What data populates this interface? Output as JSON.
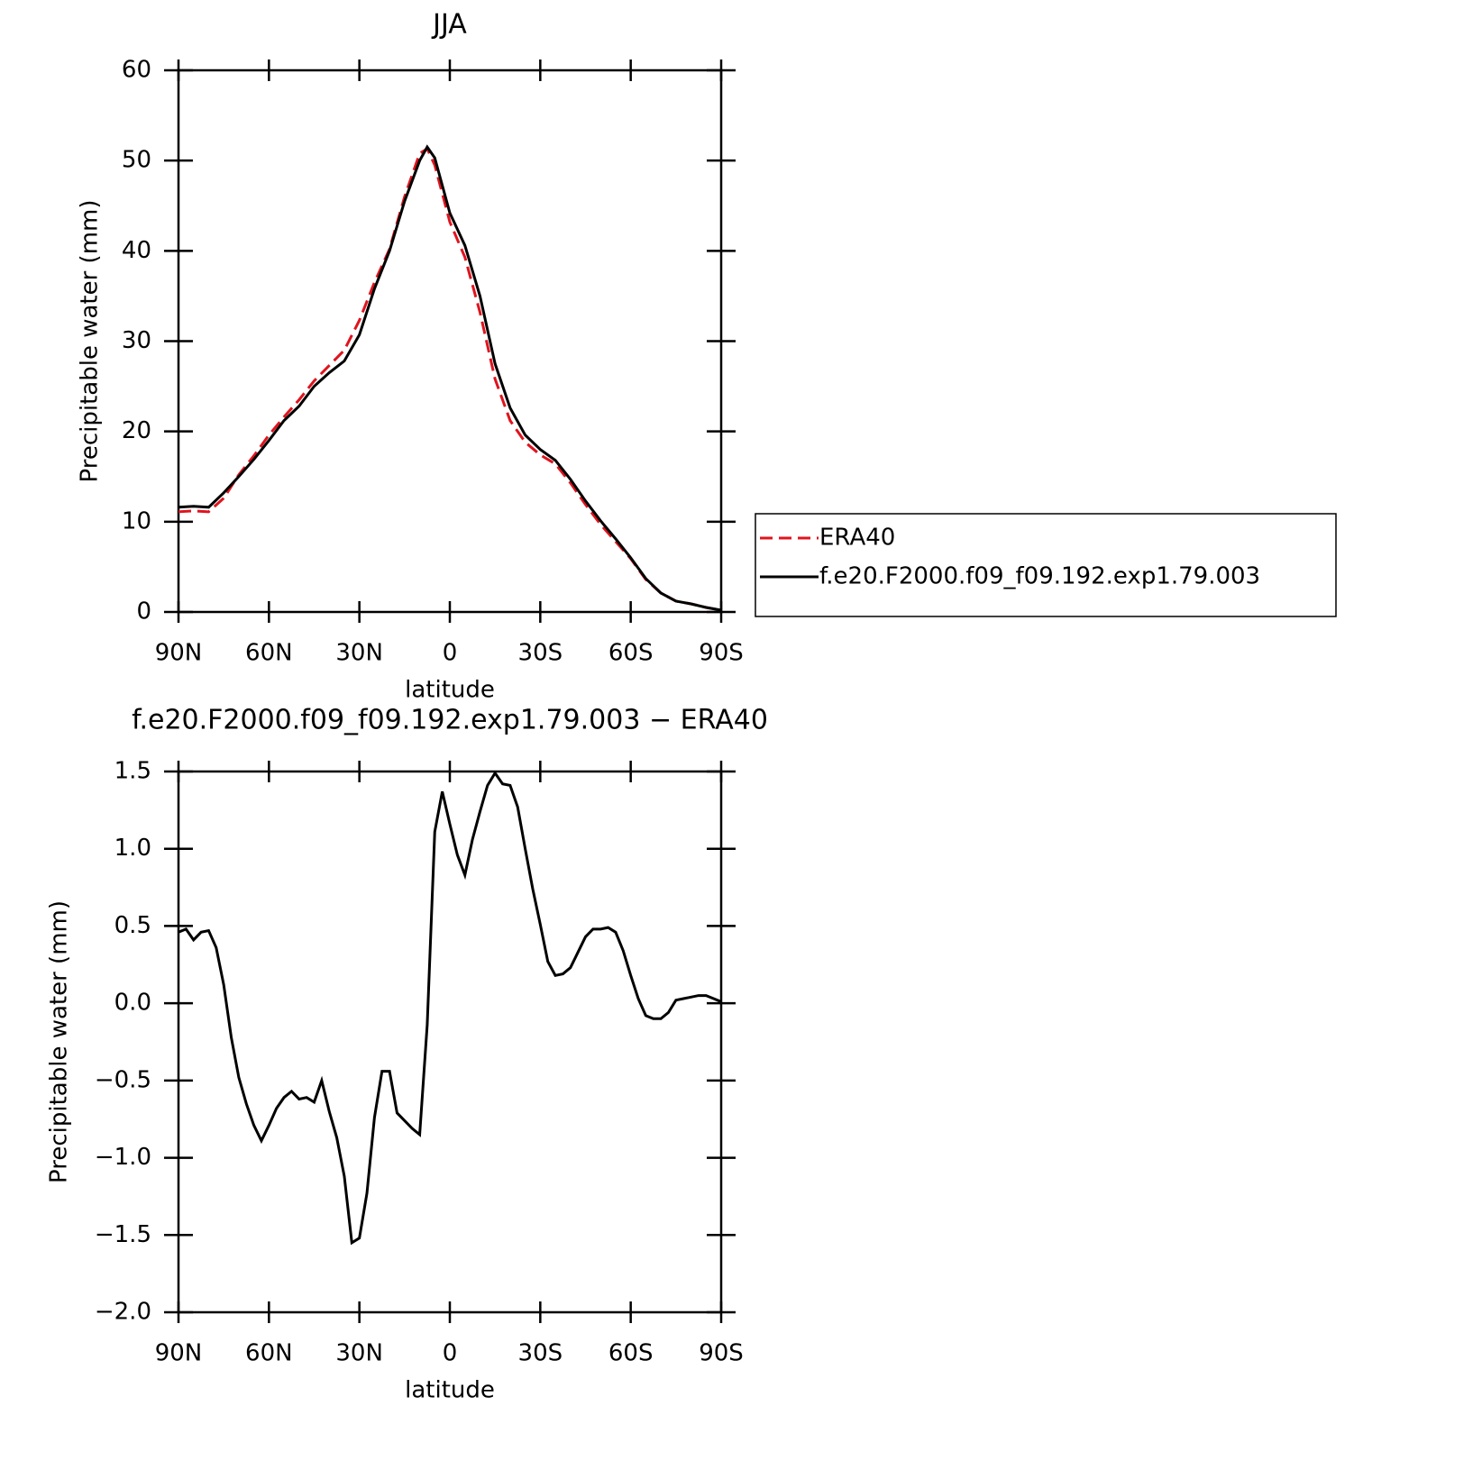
{
  "chart_data": [
    {
      "type": "line",
      "title": "JJA",
      "xlabel": "latitude",
      "ylabel": "Precipitable water (mm)",
      "x": [
        90,
        85,
        80,
        75,
        70,
        65,
        60,
        55,
        50,
        45,
        40,
        35,
        30,
        25,
        20,
        15,
        10,
        7.5,
        5,
        0,
        -5,
        -10,
        -15,
        -20,
        -25,
        -30,
        -35,
        -40,
        -45,
        -50,
        -55,
        -60,
        -65,
        -70,
        -75,
        -80,
        -85,
        -90
      ],
      "series": [
        {
          "name": "ERA40",
          "color": "#e0141e",
          "style": "dashed",
          "values": [
            11.1,
            11.2,
            11.1,
            12.6,
            15.2,
            17.3,
            19.6,
            21.6,
            23.5,
            25.6,
            27.3,
            29.0,
            32.3,
            36.5,
            40.2,
            46.0,
            50.8,
            51.3,
            49.5,
            43.2,
            39.3,
            33.2,
            25.8,
            21.2,
            18.8,
            17.4,
            16.4,
            14.3,
            11.9,
            9.7,
            7.8,
            5.9,
            3.6,
            2.1,
            1.2,
            0.9,
            0.5,
            0.2
          ]
        },
        {
          "name": "f.e20.F2000.f09_f09.192.exp1.79.003",
          "color": "#000000",
          "style": "solid",
          "values": [
            11.6,
            11.7,
            11.6,
            13.2,
            15.0,
            16.9,
            19.0,
            21.2,
            22.8,
            25.0,
            26.5,
            27.8,
            30.7,
            35.8,
            40.0,
            45.5,
            50.0,
            51.5,
            50.3,
            44.2,
            40.6,
            35.0,
            27.5,
            22.6,
            19.6,
            18.0,
            16.8,
            14.7,
            12.3,
            10.1,
            8.1,
            6.0,
            3.7,
            2.1,
            1.2,
            0.9,
            0.5,
            0.2
          ]
        }
      ],
      "xlim": [
        90,
        -90
      ],
      "xticks": [
        {
          "value": 90,
          "label": "90N"
        },
        {
          "value": 60,
          "label": "60N"
        },
        {
          "value": 30,
          "label": "30N"
        },
        0,
        {
          "value": -30,
          "label": "30S"
        },
        {
          "value": -60,
          "label": "60S"
        },
        {
          "value": -90,
          "label": "90S"
        }
      ],
      "ylim": [
        0,
        60
      ],
      "yticks": [
        0,
        10,
        20,
        30,
        40,
        50,
        60
      ],
      "legend": "right"
    },
    {
      "type": "line",
      "title": "f.e20.F2000.f09_f09.192.exp1.79.003 − ERA40",
      "xlabel": "latitude",
      "ylabel": "Precipitable water (mm)",
      "x": [
        90,
        87.5,
        85,
        82.5,
        80,
        77.5,
        75,
        72.5,
        70,
        67.5,
        65,
        62.5,
        60,
        57.5,
        55,
        52.5,
        50,
        47.5,
        45,
        42.5,
        40,
        37.5,
        35,
        32.5,
        30,
        27.5,
        25,
        22.5,
        20,
        17.5,
        15,
        12.5,
        10,
        7.5,
        5,
        2.5,
        0,
        -2.5,
        -5,
        -7.5,
        -10,
        -12.5,
        -15,
        -17.5,
        -20,
        -22.5,
        -25,
        -27.5,
        -30,
        -32.5,
        -35,
        -37.5,
        -40,
        -42.5,
        -45,
        -47.5,
        -50,
        -52.5,
        -55,
        -57.5,
        -60,
        -62.5,
        -65,
        -67.5,
        -70,
        -72.5,
        -75,
        -77.5,
        -80,
        -82.5,
        -85,
        -87.5,
        -90
      ],
      "color": "#000000",
      "values": [
        0.46,
        0.48,
        0.41,
        0.46,
        0.47,
        0.36,
        0.12,
        -0.22,
        -0.48,
        -0.65,
        -0.79,
        -0.89,
        -0.79,
        -0.68,
        -0.61,
        -0.57,
        -0.62,
        -0.61,
        -0.64,
        -0.5,
        -0.7,
        -0.87,
        -1.12,
        -1.55,
        -1.52,
        -1.23,
        -0.74,
        -0.44,
        -0.44,
        -0.71,
        -0.76,
        -0.81,
        -0.85,
        -0.14,
        1.11,
        1.37,
        1.16,
        0.96,
        0.83,
        1.06,
        1.24,
        1.41,
        1.49,
        1.42,
        1.41,
        1.27,
        1.0,
        0.74,
        0.51,
        0.27,
        0.18,
        0.19,
        0.23,
        0.33,
        0.43,
        0.48,
        0.48,
        0.49,
        0.46,
        0.34,
        0.18,
        0.03,
        -0.08,
        -0.1,
        -0.1,
        -0.06,
        0.02,
        0.03,
        0.04,
        0.05,
        0.05,
        0.03,
        0.01
      ],
      "xlim": [
        90,
        -90
      ],
      "xticks": [
        {
          "value": 90,
          "label": "90N"
        },
        {
          "value": 60,
          "label": "60N"
        },
        {
          "value": 30,
          "label": "30N"
        },
        0,
        {
          "value": -30,
          "label": "30S"
        },
        {
          "value": -60,
          "label": "60S"
        },
        {
          "value": -90,
          "label": "90S"
        }
      ],
      "ylim": [
        -2.0,
        1.5
      ],
      "yticks": [
        {
          "value": -2.0,
          "label": "−2.0"
        },
        {
          "value": -1.5,
          "label": "−1.5"
        },
        {
          "value": -1.0,
          "label": "−1.0"
        },
        {
          "value": -0.5,
          "label": "−0.5"
        },
        {
          "value": 0.0,
          "label": "0.0"
        },
        0.5,
        {
          "value": 1.0,
          "label": "1.0"
        },
        1.5
      ]
    }
  ]
}
